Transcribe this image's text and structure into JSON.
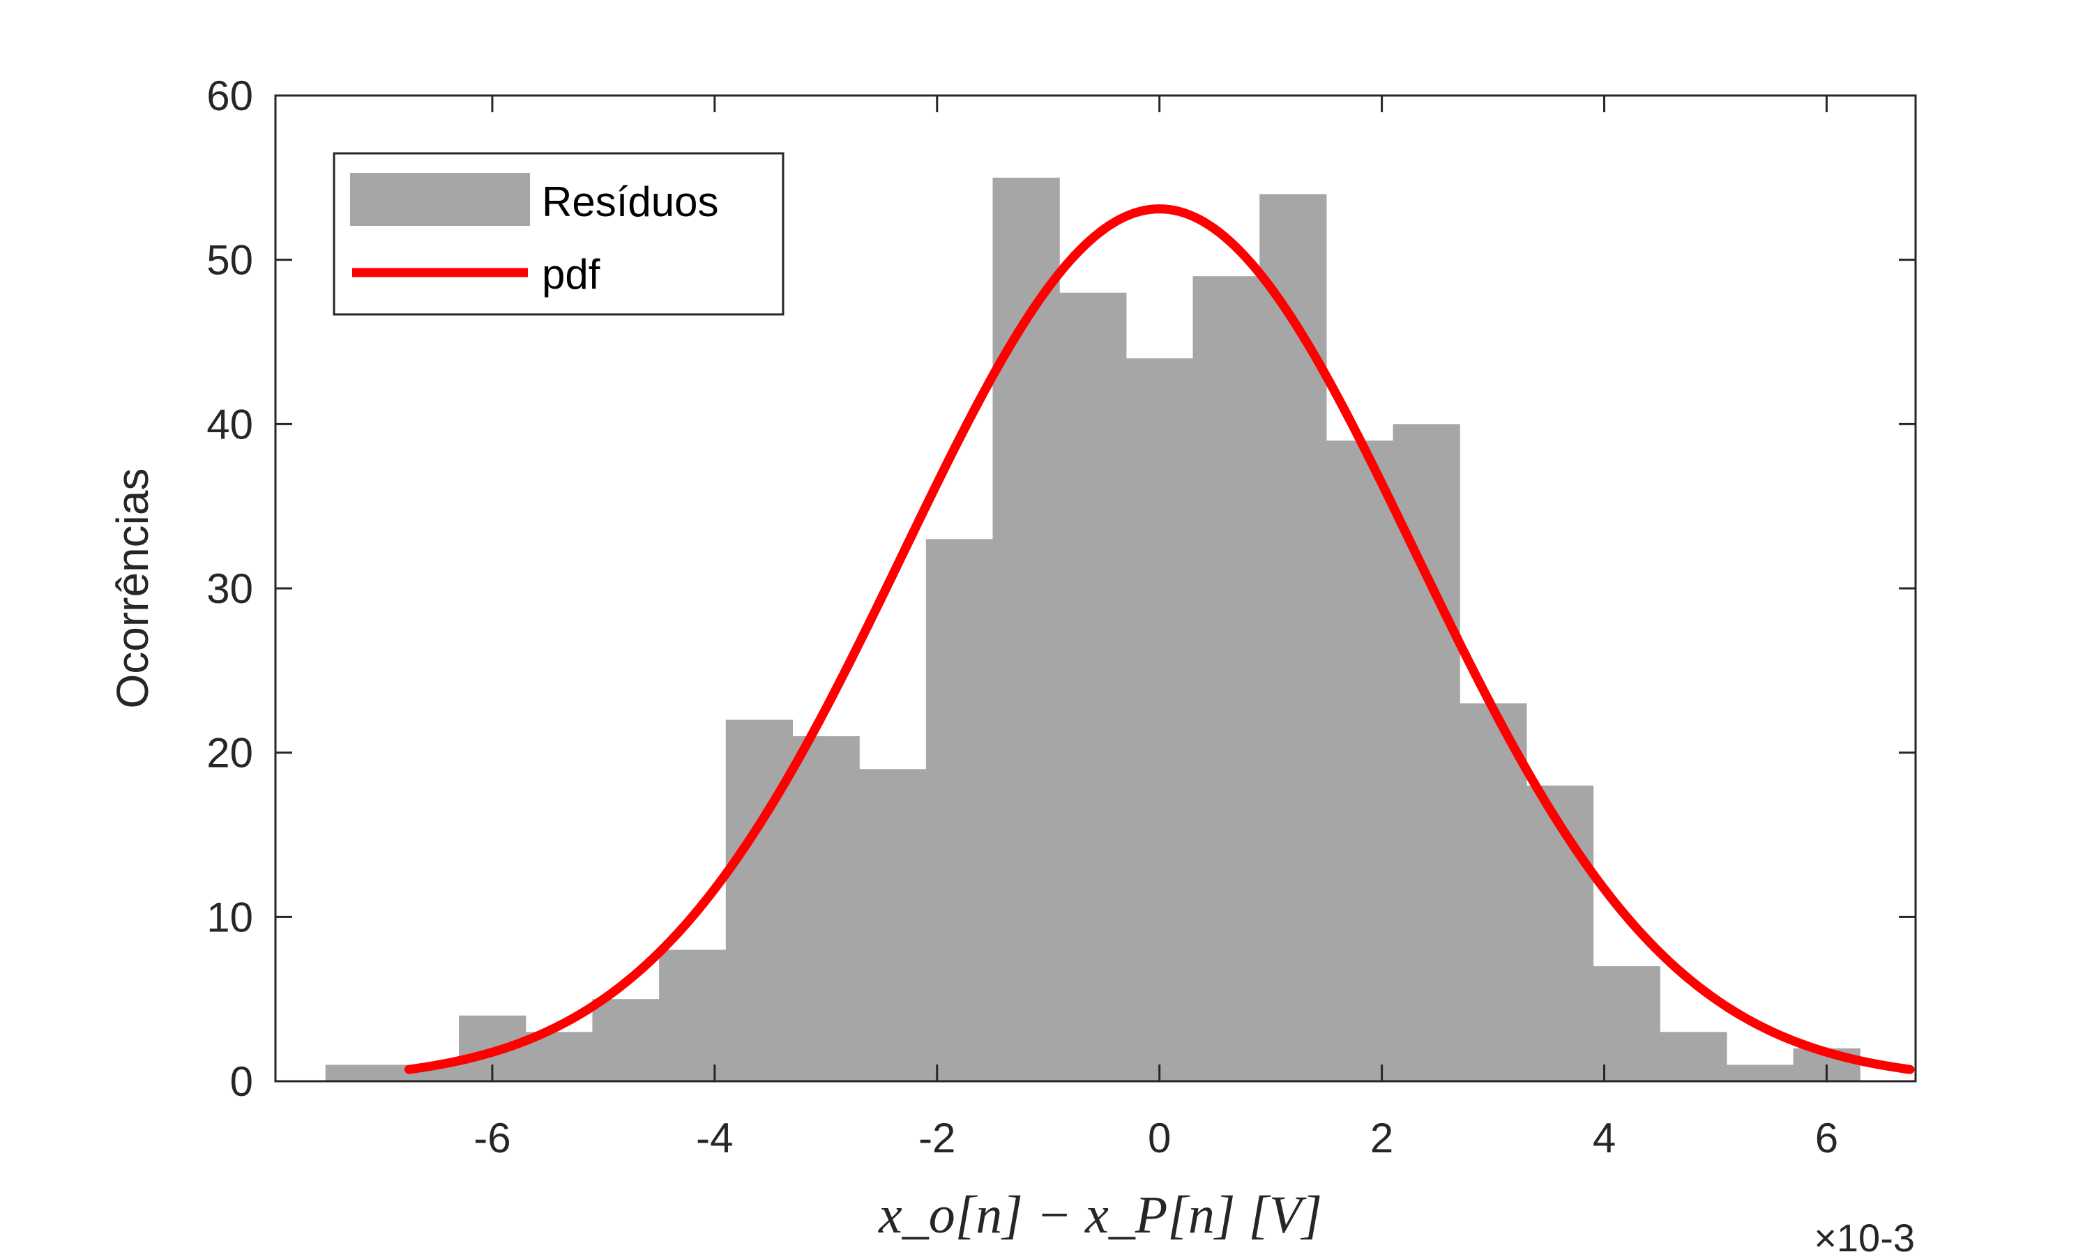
{
  "chart_data": {
    "type": "bar",
    "series": [
      {
        "name": "Resíduos",
        "kind": "histogram",
        "bin_edges": [
          -7.5,
          -6.3,
          -5.7,
          -5.1,
          -4.5,
          -3.9,
          -3.3,
          -2.7,
          -2.1,
          -1.5,
          -0.9,
          -0.3,
          0.3,
          0.9,
          1.5,
          2.1,
          2.7,
          3.3,
          3.9,
          4.5,
          5.1,
          5.7,
          6.3
        ],
        "values": [
          1,
          4,
          3,
          5,
          8,
          22,
          21,
          19,
          33,
          55,
          48,
          44,
          49,
          54,
          39,
          40,
          23,
          18,
          7,
          3,
          1,
          2
        ],
        "color": "#a6a6a6"
      },
      {
        "name": "pdf",
        "kind": "line",
        "mean": 0,
        "peak": 53.1,
        "sigma": 2.3,
        "x_range": [
          -6.75,
          6.75
        ],
        "color": "#ff0000"
      }
    ],
    "xlabel": "x_o[n] − x_P[n] [V]",
    "ylabel": "Ocorrências",
    "x_exponent": "×10-3",
    "xlim": [
      -7.95,
      6.8
    ],
    "ylim": [
      0,
      60
    ],
    "xticks": [
      -6,
      -4,
      -2,
      0,
      2,
      4,
      6
    ],
    "yticks": [
      0,
      10,
      20,
      30,
      40,
      50,
      60
    ],
    "xtick_labels": [
      "-6",
      "-4",
      "-2",
      "0",
      "2",
      "4",
      "6"
    ],
    "ytick_labels": [
      "0",
      "10",
      "20",
      "30",
      "40",
      "50",
      "60"
    ],
    "legend": {
      "position": "top-left",
      "entries": [
        "Resíduos",
        "pdf"
      ]
    },
    "grid": false
  }
}
